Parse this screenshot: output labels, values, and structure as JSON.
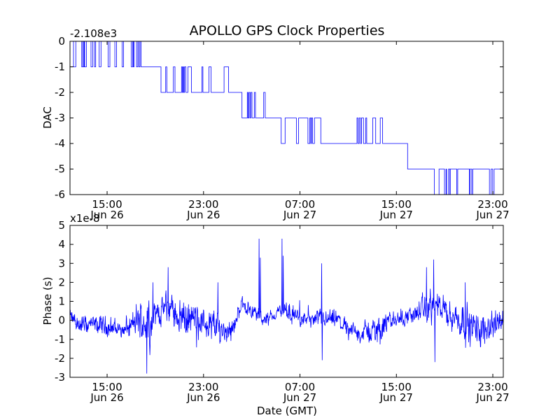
{
  "title": "APOLLO GPS Clock Properties",
  "colors": {
    "line": "#0000ff",
    "axes": "#000000",
    "background": "#ffffff"
  },
  "chart_data": [
    {
      "type": "line",
      "title": "APOLLO GPS Clock Properties",
      "ylabel": "DAC",
      "xlabel": "",
      "offset_text": "-2.108e3",
      "x_units": "hours since Jun 26 00:00 GMT",
      "xlim": [
        11.92,
        47.87
      ],
      "ylim": [
        -6,
        0
      ],
      "yticks": [
        "0",
        "-1",
        "-2",
        "-3",
        "-4",
        "-5",
        "-6"
      ],
      "ytick_values": [
        0,
        -1,
        -2,
        -3,
        -4,
        -5,
        -6
      ],
      "xticks": [
        {
          "value": 15,
          "time": "15:00",
          "date": "Jun 26"
        },
        {
          "value": 23,
          "time": "23:00",
          "date": "Jun 26"
        },
        {
          "value": 31,
          "time": "07:00",
          "date": "Jun 27"
        },
        {
          "value": 39,
          "time": "15:00",
          "date": "Jun 27"
        },
        {
          "value": 47,
          "time": "23:00",
          "date": "Jun 27"
        }
      ],
      "segments": [
        {
          "from": 11.92,
          "to": 17.82,
          "level": 0,
          "excursions": [
            [
              12.21,
              12.4,
              -1
            ],
            [
              12.89,
              12.99,
              -1
            ],
            [
              13.02,
              13.1,
              -1
            ],
            [
              13.14,
              13.28,
              -1
            ],
            [
              13.66,
              13.8,
              -1
            ],
            [
              13.95,
              14.05,
              -1
            ],
            [
              14.34,
              14.49,
              -1
            ],
            [
              15.08,
              15.23,
              -1
            ],
            [
              15.64,
              15.79,
              -1
            ],
            [
              16.24,
              16.37,
              -1
            ],
            [
              17.01,
              17.11,
              -1
            ],
            [
              17.17,
              17.24,
              -1
            ],
            [
              17.44,
              17.55,
              -1
            ],
            [
              17.63,
              17.73,
              -1
            ]
          ]
        },
        {
          "from": 17.82,
          "to": 19.47,
          "level": -1,
          "excursions": []
        },
        {
          "from": 19.47,
          "to": 26.19,
          "level": -2,
          "excursions": [
            [
              19.86,
              19.95,
              -1
            ],
            [
              20.5,
              20.63,
              -1
            ],
            [
              21.17,
              21.25,
              -1
            ],
            [
              21.31,
              21.37,
              -1
            ],
            [
              21.43,
              21.54,
              -1
            ],
            [
              21.7,
              21.99,
              -1
            ],
            [
              22.86,
              22.95,
              -1
            ],
            [
              23.44,
              23.63,
              -1
            ],
            [
              24.7,
              25.08,
              -1
            ]
          ]
        },
        {
          "from": 26.19,
          "to": 29.44,
          "level": -3,
          "excursions": [
            [
              26.63,
              26.69,
              -2
            ],
            [
              26.77,
              26.85,
              -2
            ],
            [
              26.92,
              27.02,
              -2
            ],
            [
              27.21,
              27.31,
              -2
            ],
            [
              27.99,
              28.12,
              -2
            ]
          ]
        },
        {
          "from": 29.44,
          "to": 29.77,
          "level": -4,
          "excursions": []
        },
        {
          "from": 29.77,
          "to": 32.73,
          "level": -3,
          "excursions": [
            [
              30.7,
              30.89,
              -4
            ],
            [
              31.66,
              31.82,
              -4
            ],
            [
              31.9,
              31.95,
              -4
            ],
            [
              32.05,
              32.2,
              -4
            ]
          ]
        },
        {
          "from": 32.73,
          "to": 39.93,
          "level": -4,
          "excursions": [
            [
              35.73,
              35.82,
              -3
            ],
            [
              35.92,
              36.02,
              -3
            ],
            [
              36.11,
              36.27,
              -3
            ],
            [
              36.46,
              36.54,
              -3
            ],
            [
              37.04,
              37.28,
              -3
            ],
            [
              37.66,
              37.86,
              -3
            ]
          ]
        },
        {
          "from": 39.93,
          "to": 47.87,
          "level": -5,
          "excursions": [
            [
              42.15,
              42.54,
              -6
            ],
            [
              42.99,
              43.12,
              -6
            ],
            [
              43.16,
              43.32,
              -6
            ],
            [
              43.43,
              43.47,
              -6
            ],
            [
              44.01,
              44.09,
              -6
            ],
            [
              45.06,
              45.12,
              -6
            ],
            [
              45.25,
              45.33,
              -6
            ],
            [
              46.72,
              46.86,
              -6
            ],
            [
              46.99,
              47.11,
              -6
            ]
          ]
        }
      ]
    },
    {
      "type": "line",
      "title": "",
      "ylabel": "Phase (s)",
      "xlabel": "Date (GMT)",
      "offset_text": "x1e-8",
      "x_units": "hours since Jun 26 00:00 GMT",
      "y_units": "1e-8 s",
      "xlim": [
        11.92,
        47.87
      ],
      "ylim": [
        -3,
        5
      ],
      "yticks": [
        "5",
        "4",
        "3",
        "2",
        "1",
        "0",
        "-1",
        "-2",
        "-3"
      ],
      "ytick_values": [
        5,
        4,
        3,
        2,
        1,
        0,
        -1,
        -2,
        -3
      ],
      "xticks": [
        {
          "value": 15,
          "time": "15:00",
          "date": "Jun 26"
        },
        {
          "value": 23,
          "time": "23:00",
          "date": "Jun 26"
        },
        {
          "value": 31,
          "time": "07:00",
          "date": "Jun 27"
        },
        {
          "value": 39,
          "time": "15:00",
          "date": "Jun 27"
        },
        {
          "value": 47,
          "time": "23:00",
          "date": "Jun 27"
        }
      ],
      "trend": [
        [
          11.92,
          0.2,
          0.4
        ],
        [
          12.5,
          -0.2,
          0.5
        ],
        [
          14.8,
          -0.3,
          0.5
        ],
        [
          16.6,
          -0.5,
          0.5
        ],
        [
          17.7,
          0.0,
          1.0
        ],
        [
          18.4,
          0.0,
          1.2
        ],
        [
          19.2,
          0.4,
          0.6
        ],
        [
          20.0,
          0.7,
          0.8
        ],
        [
          21.2,
          0.2,
          0.9
        ],
        [
          23.5,
          -0.2,
          0.8
        ],
        [
          24.7,
          -0.5,
          0.9
        ],
        [
          25.6,
          -0.3,
          0.5
        ],
        [
          26.1,
          0.9,
          0.4
        ],
        [
          27.0,
          0.5,
          0.4
        ],
        [
          28.2,
          0.0,
          0.4
        ],
        [
          29.3,
          0.5,
          0.4
        ],
        [
          30.5,
          0.3,
          0.5
        ],
        [
          31.7,
          0.0,
          0.4
        ],
        [
          34.0,
          0.0,
          0.5
        ],
        [
          35.7,
          -0.7,
          0.5
        ],
        [
          37.5,
          -0.5,
          0.7
        ],
        [
          38.6,
          0.0,
          0.5
        ],
        [
          40.4,
          0.3,
          0.5
        ],
        [
          42.1,
          0.8,
          0.9
        ],
        [
          43.3,
          0.3,
          0.7
        ],
        [
          44.5,
          0.0,
          0.9
        ],
        [
          45.6,
          -0.5,
          0.9
        ],
        [
          47.87,
          0.0,
          0.6
        ]
      ],
      "spikes": [
        [
          18.3,
          -2.8
        ],
        [
          20.05,
          2.8
        ],
        [
          27.6,
          4.3
        ],
        [
          27.7,
          3.3
        ],
        [
          29.5,
          4.3
        ],
        [
          29.6,
          3.4
        ],
        [
          32.8,
          3.0
        ],
        [
          32.85,
          -2.1
        ],
        [
          41.5,
          2.8
        ],
        [
          42.1,
          3.2
        ],
        [
          42.2,
          -2.2
        ],
        [
          44.7,
          2.0
        ],
        [
          18.8,
          2.0
        ],
        [
          24.2,
          2.0
        ]
      ]
    }
  ]
}
